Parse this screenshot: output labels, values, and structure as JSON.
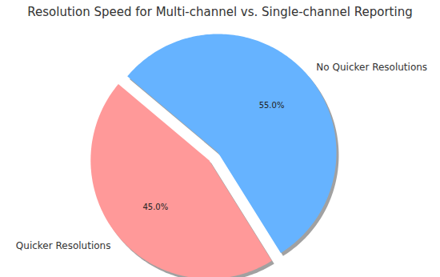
{
  "chart_data": {
    "type": "pie",
    "title": "Resolution Speed for Multi-channel vs. Single-channel Reporting",
    "categories": [
      "Quicker Resolutions",
      "No Quicker Resolutions"
    ],
    "values": [
      45,
      55
    ],
    "colors": [
      "#ff9999",
      "#66b3ff"
    ],
    "data_labels": true,
    "value_labels": [
      "45.0%",
      "55.0%"
    ]
  }
}
